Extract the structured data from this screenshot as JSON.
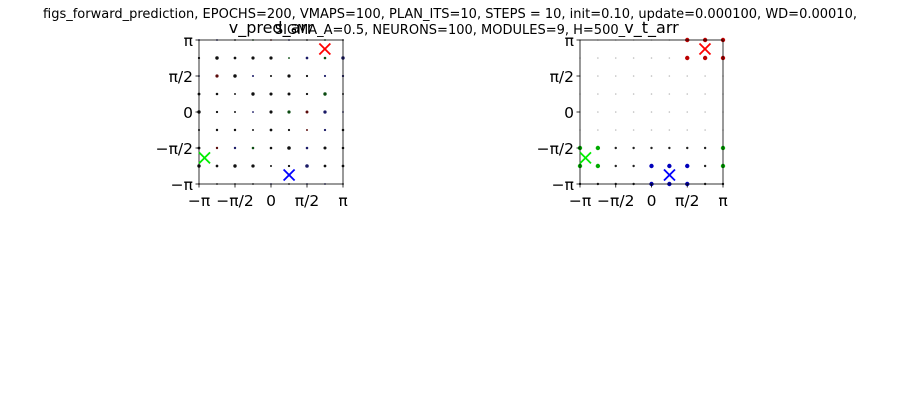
{
  "suptitle_line1": "figs_forward_prediction, EPOCHS=200, VMAPS=100, PLAN_ITS=10, STEPS = 10, init=0.10, update=0.000100, WD=0.00010,",
  "suptitle_line2": "SIGMA_A=0.5, NEURONS=100, MODULES=9, H=500_",
  "chart_data": [
    {
      "type": "scatter",
      "title": "v_pred_arr",
      "xlabel": "",
      "ylabel": "",
      "xlim": [
        -3.1416,
        3.1416
      ],
      "ylim": [
        -3.1416,
        3.1416
      ],
      "xticks": [
        "−π",
        "−π/2",
        "0",
        "π/2",
        "π"
      ],
      "yticks": [
        "−π",
        "−π/2",
        "0",
        "π/2",
        "π"
      ],
      "grid": false,
      "field": "9x9 grid of small dots over [-π, π]²; mostly dark/black with faint dark-blue, dark-red and dark-green tints",
      "markers": [
        {
          "name": "green",
          "marker": "x",
          "color": "#00ee00",
          "x": -2.9,
          "y": -2.0
        },
        {
          "name": "blue",
          "marker": "x",
          "color": "#0000ff",
          "x": 0.79,
          "y": -2.75
        },
        {
          "name": "red",
          "marker": "x",
          "color": "#ff0000",
          "x": 2.35,
          "y": 2.75
        }
      ]
    },
    {
      "type": "scatter",
      "title": "v_t_arr",
      "xlabel": "",
      "ylabel": "",
      "xlim": [
        -3.1416,
        3.1416
      ],
      "ylim": [
        -3.1416,
        3.1416
      ],
      "xticks": [
        "−π",
        "−π/2",
        "0",
        "π/2",
        "π"
      ],
      "yticks": [
        "−π",
        "−π/2",
        "0",
        "π/2",
        "π"
      ],
      "grid": false,
      "field": "9x9 grid of small dots; large blue dots near lower-center, red near upper-right, green near lower-left/right edges, faint grey elsewhere",
      "markers": [
        {
          "name": "green",
          "marker": "x",
          "color": "#00ee00",
          "x": -2.9,
          "y": -2.0
        },
        {
          "name": "blue",
          "marker": "x",
          "color": "#0000ff",
          "x": 0.79,
          "y": -2.75
        },
        {
          "name": "red",
          "marker": "x",
          "color": "#ff0000",
          "x": 2.35,
          "y": 2.75
        }
      ]
    }
  ]
}
